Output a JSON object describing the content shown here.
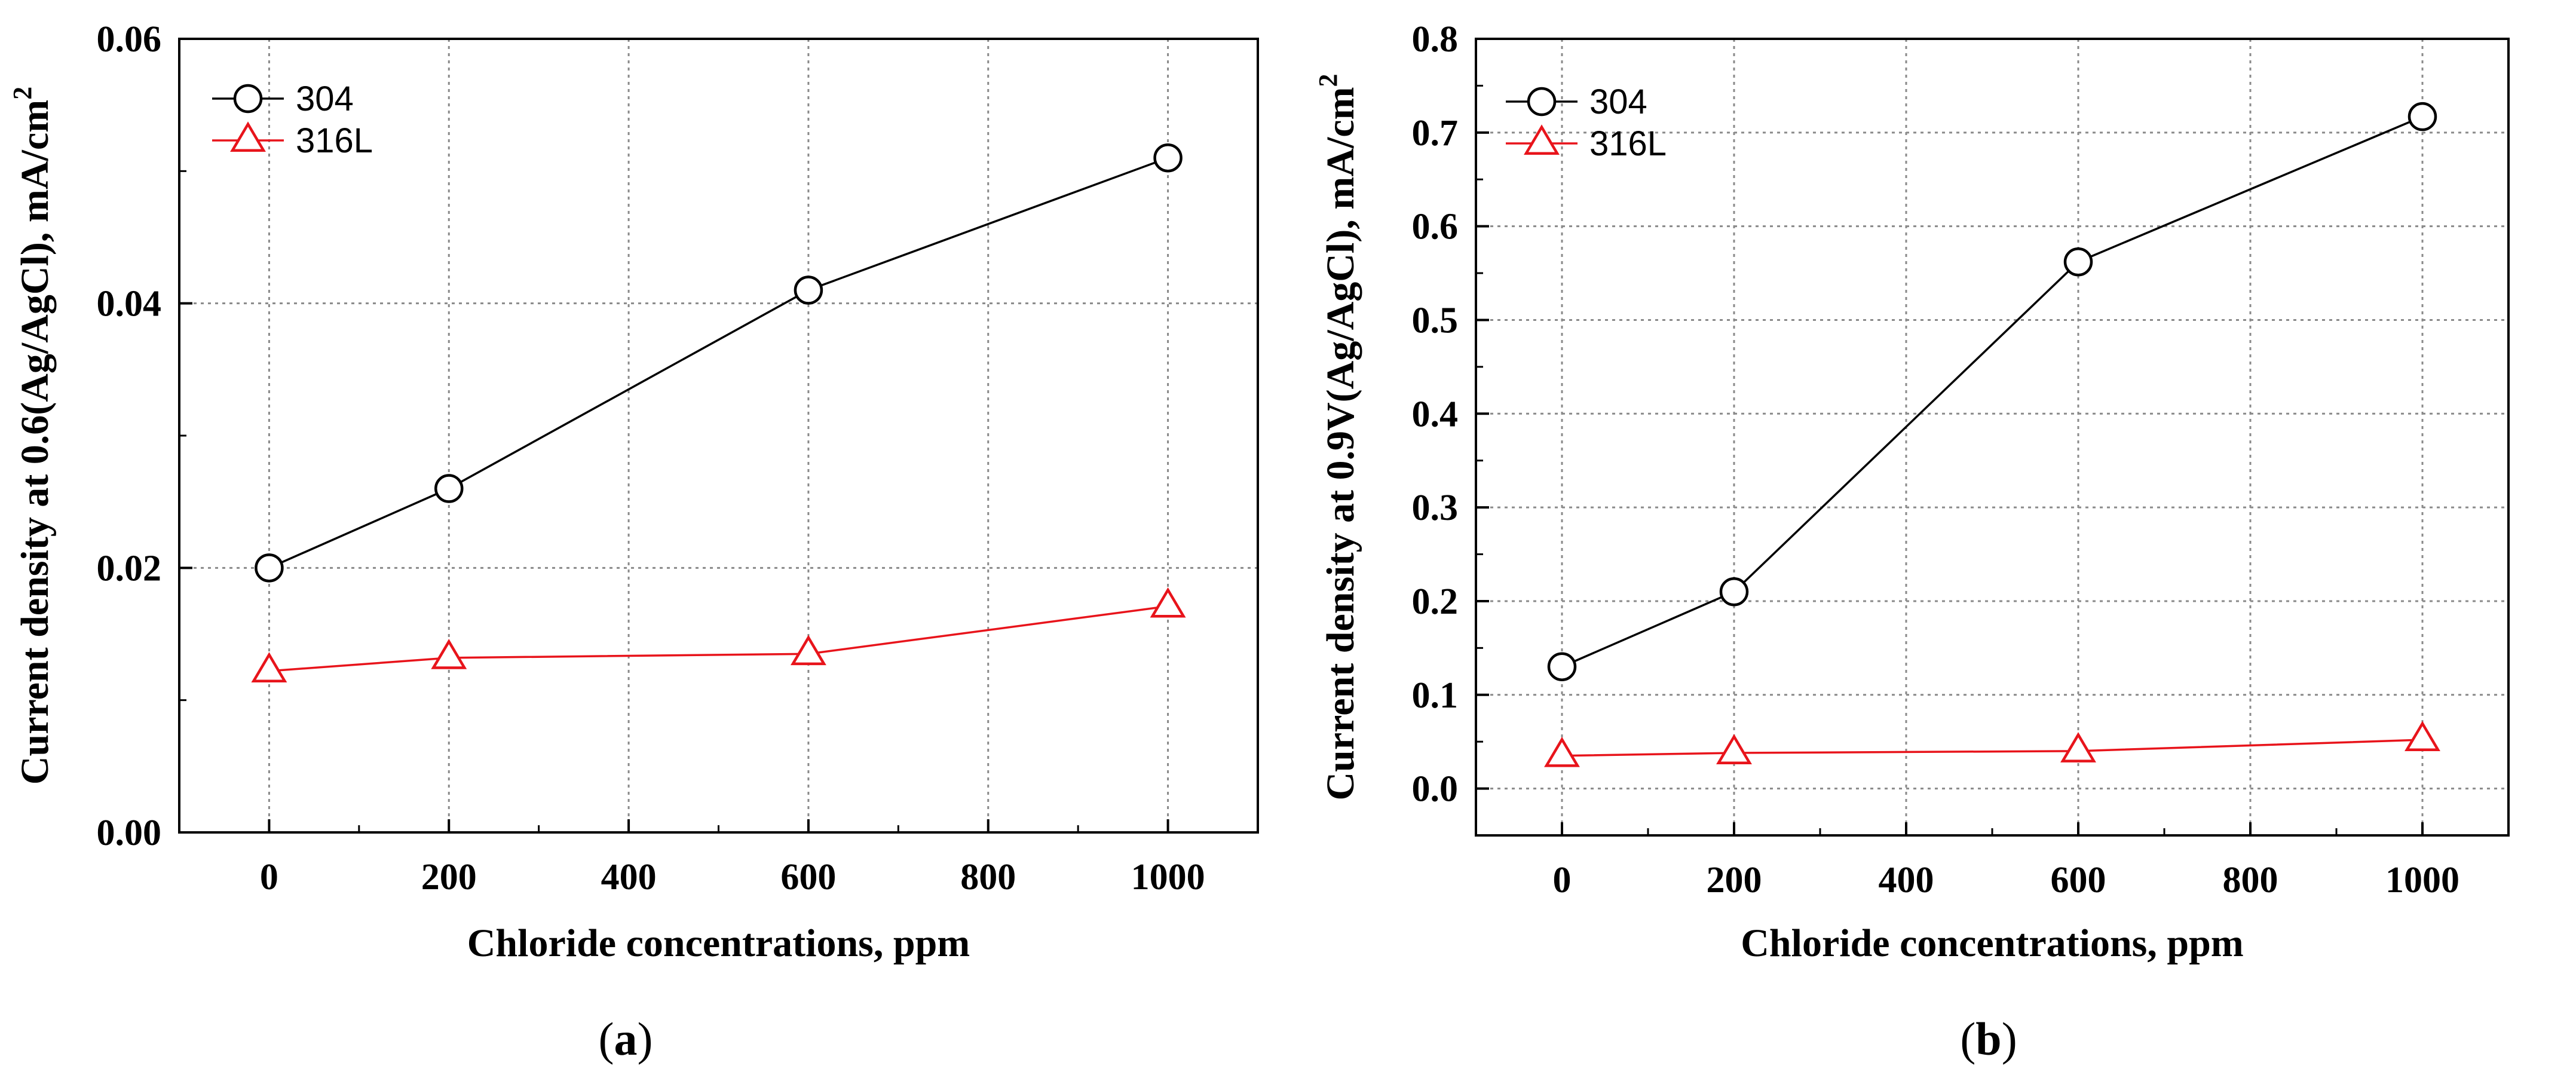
{
  "chart_data": [
    {
      "type": "line",
      "panel_label": "(a)",
      "panel_label_parts": [
        "(",
        "a",
        ")"
      ],
      "xlabel": "Chloride concentrations, ppm",
      "ylabel": "Current density at 0.6(Ag/AgCl), mA/cm",
      "ylabel_superscript": "2",
      "xlim": [
        -100,
        1100
      ],
      "ylim": [
        0.0,
        0.06
      ],
      "xticks": [
        0,
        200,
        400,
        600,
        800,
        1000
      ],
      "xtick_labels": [
        "0",
        "200",
        "400",
        "600",
        "800",
        "1000"
      ],
      "yticks": [
        0.0,
        0.02,
        0.04,
        0.06
      ],
      "ytick_labels": [
        "0.00",
        "0.02",
        "0.04",
        "0.06"
      ],
      "grid": true,
      "legend_position": "top-left",
      "series": [
        {
          "name": "304",
          "marker": "circle",
          "color": "#000000",
          "x": [
            0,
            200,
            600,
            1000
          ],
          "values": [
            0.02,
            0.026,
            0.041,
            0.051
          ]
        },
        {
          "name": "316L",
          "marker": "triangle",
          "color": "#e8141b",
          "x": [
            0,
            200,
            600,
            1000
          ],
          "values": [
            0.0122,
            0.0132,
            0.0135,
            0.0171
          ]
        }
      ]
    },
    {
      "type": "line",
      "panel_label": "(b)",
      "panel_label_parts": [
        "(",
        "b",
        ")"
      ],
      "xlabel": "Chloride concentrations, ppm",
      "ylabel": "Current density at 0.9V(Ag/AgCl), mA/cm",
      "ylabel_superscript": "2",
      "xlim": [
        -100,
        1100
      ],
      "ylim": [
        -0.05,
        0.8
      ],
      "xticks": [
        0,
        200,
        400,
        600,
        800,
        1000
      ],
      "xtick_labels": [
        "0",
        "200",
        "400",
        "600",
        "800",
        "1000"
      ],
      "yticks": [
        0.0,
        0.1,
        0.2,
        0.3,
        0.4,
        0.5,
        0.6,
        0.7,
        0.8
      ],
      "ytick_labels": [
        "0.0",
        "0.1",
        "0.2",
        "0.3",
        "0.4",
        "0.5",
        "0.6",
        "0.7",
        "0.8"
      ],
      "grid": true,
      "legend_position": "top-left",
      "series": [
        {
          "name": "304",
          "marker": "circle",
          "color": "#000000",
          "x": [
            0,
            200,
            600,
            1000
          ],
          "values": [
            0.13,
            0.21,
            0.562,
            0.717
          ]
        },
        {
          "name": "316L",
          "marker": "triangle",
          "color": "#e8141b",
          "x": [
            0,
            200,
            600,
            1000
          ],
          "values": [
            0.035,
            0.038,
            0.04,
            0.052
          ]
        }
      ]
    }
  ]
}
